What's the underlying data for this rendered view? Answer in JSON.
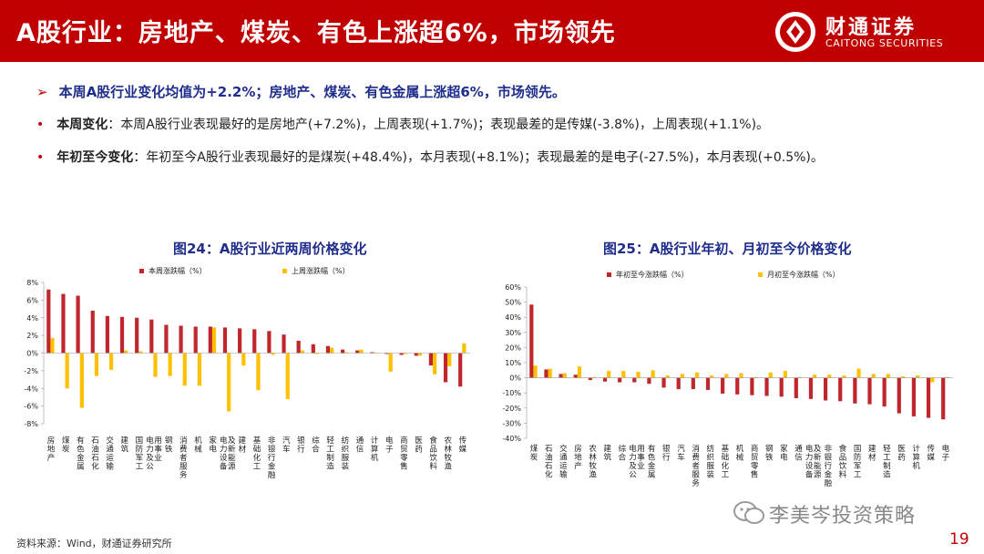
{
  "header": {
    "title": "A股行业：房地产、煤炭、有色上涨超6%，市场领先",
    "brand_cn": "财通证券",
    "brand_en": "CAITONG SECURITIES"
  },
  "summary": {
    "main": "本周A股行业变化均值为+2.2%；房地产、煤炭、有色金属上涨超6%，市场领先。",
    "week_label": "本周变化",
    "week_text": "：本周A股行业表现最好的是房地产(+7.2%)，上周表现(+1.7%)；表现最差的是传媒(-3.8%)，上周表现(+1.1%)。",
    "ytd_label": "年初至今变化",
    "ytd_text": "：年初至今A股行业表现最好的是煤炭(+48.4%)，本月表现(+8.1%)；表现最差的是电子(-27.5%)，本月表现(+0.5%)。"
  },
  "colors": {
    "red": "#c0272d",
    "yellow": "#ffc000",
    "brand": "#c00000",
    "title_blue": "#1f2d8c"
  },
  "chart_data": [
    {
      "type": "bar",
      "title": "图24：A股行业近两周价格变化",
      "categories": [
        "房地产",
        "煤炭",
        "有色金属",
        "石油石化",
        "交通运输",
        "建筑",
        "国防军工",
        "电力及公用事业",
        "钢铁",
        "消费者服务",
        "机械",
        "家电",
        "电力设备及新能源",
        "建材",
        "基础化工",
        "非银行金融",
        "汽车",
        "银行",
        "综合",
        "轻工制造",
        "纺织服装",
        "通信",
        "计算机",
        "电子",
        "商贸零售",
        "医药",
        "食品饮料",
        "农林牧渔",
        "传媒"
      ],
      "series": [
        {
          "name": "本周涨跌幅（%）",
          "values": [
            7.2,
            6.7,
            6.5,
            4.8,
            4.2,
            4.1,
            4.0,
            3.8,
            3.2,
            3.1,
            3.0,
            3.0,
            2.9,
            2.8,
            2.7,
            2.5,
            2.1,
            1.4,
            1.0,
            0.8,
            0.4,
            0.3,
            0.1,
            -0.1,
            -0.2,
            -0.3,
            -1.4,
            -3.3,
            -3.8
          ]
        },
        {
          "name": "上周涨跌幅（%）",
          "values": [
            1.7,
            -4.0,
            -6.2,
            -2.6,
            -1.9,
            0.3,
            0.2,
            -2.7,
            -2.6,
            -3.7,
            -3.7,
            2.9,
            -6.6,
            -1.4,
            -4.2,
            -0.2,
            -5.2,
            0.3,
            -0.1,
            0.6,
            0.1,
            0.4,
            0.0,
            -2.1,
            -0.1,
            -0.3,
            -2.4,
            -1.5,
            1.1
          ]
        }
      ],
      "ylim": [
        -8,
        8
      ],
      "yticks": [
        "8%",
        "6%",
        "4%",
        "2%",
        "0%",
        "-2%",
        "-4%",
        "-6%",
        "-8%"
      ],
      "legend": "top"
    },
    {
      "type": "bar",
      "title": "图25：A股行业年初、月初至今价格变化",
      "categories": [
        "煤炭",
        "石油石化",
        "交通运输",
        "房地产",
        "农林牧渔",
        "建筑",
        "综合",
        "电力及公用事业",
        "有色金属",
        "银行",
        "汽车",
        "消费者服务",
        "纺织服装",
        "基础化工",
        "机械",
        "商贸零售",
        "钢铁",
        "家电",
        "通信",
        "电力设备及新能源",
        "非银行金融",
        "食品饮料",
        "国防军工",
        "建材",
        "轻工制造",
        "医药",
        "计算机",
        "传媒",
        "电子"
      ],
      "series": [
        {
          "name": "年初至今涨跌幅（%）",
          "values": [
            48.4,
            5.5,
            2.5,
            2.0,
            -1.5,
            -2.5,
            -3.0,
            -3.0,
            -4.0,
            -6.5,
            -7.5,
            -7.5,
            -8.0,
            -10.5,
            -11.0,
            -11.5,
            -12.0,
            -12.5,
            -13.5,
            -14.0,
            -15.0,
            -15.5,
            -17.0,
            -17.5,
            -19.0,
            -23.5,
            -25.5,
            -26.5,
            -27.5
          ]
        },
        {
          "name": "月初至今涨跌幅（%）",
          "values": [
            8.1,
            6.0,
            3.0,
            7.5,
            0.5,
            4.5,
            4.5,
            4.0,
            5.0,
            1.5,
            2.5,
            3.5,
            1.5,
            2.5,
            3.0,
            0.5,
            3.5,
            4.5,
            0.5,
            2.0,
            2.0,
            1.5,
            6.0,
            2.5,
            2.5,
            1.0,
            1.5,
            -3.0,
            0.5
          ]
        }
      ],
      "ylim": [
        -40,
        60
      ],
      "yticks": [
        "60%",
        "50%",
        "40%",
        "30%",
        "20%",
        "10%",
        "0%",
        "-10%",
        "-20%",
        "-30%",
        "-40%"
      ],
      "legend": "top"
    }
  ],
  "footer": {
    "source": "资料来源：Wind，财通证券研究所",
    "page_number": "19",
    "watermark": "李美岑投资策略"
  }
}
